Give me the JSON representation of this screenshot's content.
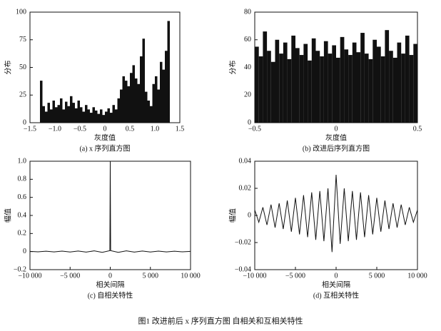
{
  "chart_data": [
    {
      "type": "histogram",
      "caption": "(a) x 序列直方图",
      "xlabel": "灰度值",
      "ylabel": "分布",
      "color": "#111111",
      "bins": [
        -1.3,
        -1.25,
        -1.2,
        -1.15,
        -1.1,
        -1.05,
        -1.0,
        -0.95,
        -0.9,
        -0.85,
        -0.8,
        -0.75,
        -0.7,
        -0.65,
        -0.6,
        -0.55,
        -0.5,
        -0.45,
        -0.4,
        -0.35,
        -0.3,
        -0.25,
        -0.2,
        -0.15,
        -0.1,
        -0.05,
        0,
        0.05,
        0.1,
        0.15,
        0.2,
        0.25,
        0.3,
        0.35,
        0.4,
        0.45,
        0.5,
        0.55,
        0.6,
        0.65,
        0.7,
        0.75,
        0.8,
        0.85,
        0.9,
        0.95,
        1.0,
        1.05,
        1.1,
        1.15,
        1.2,
        1.25,
        1.3
      ],
      "values": [
        38,
        15,
        10,
        18,
        12,
        20,
        14,
        16,
        22,
        12,
        19,
        15,
        24,
        18,
        13,
        20,
        14,
        10,
        16,
        12,
        9,
        14,
        11,
        8,
        12,
        7,
        10,
        13,
        9,
        16,
        12,
        22,
        30,
        42,
        38,
        33,
        45,
        52,
        40,
        35,
        60,
        76,
        28,
        20,
        15,
        35,
        42,
        30,
        55,
        48,
        65,
        92
      ],
      "xlim": [
        -1.5,
        1.5
      ],
      "xticks": [
        {
          "value": -1.5,
          "label": "−1.5"
        },
        {
          "value": -1.0,
          "label": "−1.0"
        },
        {
          "value": -0.5,
          "label": "−0.5"
        },
        0,
        0.5,
        {
          "value": 1.0,
          "label": "1.0"
        },
        1.5
      ],
      "ylim": [
        0,
        100
      ],
      "yticks": [
        0,
        25,
        50,
        75,
        100
      ]
    },
    {
      "type": "histogram",
      "caption": "(b) 改进后序列直方图",
      "xlabel": "灰度值",
      "ylabel": "分布",
      "color": "#111111",
      "bins": [
        -0.5,
        -0.475,
        -0.45,
        -0.425,
        -0.4,
        -0.375,
        -0.35,
        -0.325,
        -0.3,
        -0.275,
        -0.25,
        -0.225,
        -0.2,
        -0.175,
        -0.15,
        -0.125,
        -0.1,
        -0.075,
        -0.05,
        -0.025,
        0,
        0.025,
        0.05,
        0.075,
        0.1,
        0.125,
        0.15,
        0.175,
        0.2,
        0.225,
        0.25,
        0.275,
        0.3,
        0.325,
        0.35,
        0.375,
        0.4,
        0.425,
        0.45,
        0.475,
        0.5
      ],
      "values": [
        55,
        48,
        66,
        52,
        44,
        60,
        50,
        58,
        46,
        63,
        54,
        49,
        57,
        45,
        61,
        52,
        48,
        59,
        50,
        56,
        47,
        62,
        53,
        49,
        58,
        51,
        65,
        50,
        46,
        60,
        55,
        48,
        67,
        52,
        47,
        58,
        50,
        63,
        49,
        57
      ],
      "xlim": [
        -0.5,
        0.5
      ],
      "xticks": [
        {
          "value": -0.5,
          "label": "−0.5"
        },
        0,
        0.5
      ],
      "ylim": [
        0,
        80
      ],
      "yticks": [
        0,
        20,
        40,
        60,
        80
      ]
    },
    {
      "type": "line",
      "caption": "(c) 自相关特性",
      "xlabel": "相关间隔",
      "ylabel": "幅值",
      "color": "#111111",
      "x": [
        -10000,
        -9000,
        -8000,
        -7000,
        -6000,
        -5000,
        -4000,
        -3000,
        -2000,
        -1000,
        -50,
        0,
        50,
        1000,
        2000,
        3000,
        4000,
        5000,
        6000,
        7000,
        8000,
        9000,
        10000
      ],
      "values": [
        0.002,
        -0.003,
        0.004,
        -0.004,
        0.005,
        -0.005,
        0.006,
        -0.006,
        0.008,
        -0.008,
        0.01,
        1,
        0.01,
        -0.008,
        0.008,
        -0.006,
        0.006,
        -0.005,
        0.005,
        -0.004,
        0.004,
        -0.003,
        0.002
      ],
      "xlim": [
        -10000,
        10000
      ],
      "xticks": [
        {
          "value": -10000,
          "label": "−10 000"
        },
        {
          "value": -5000,
          "label": "−5 000"
        },
        0,
        {
          "value": 5000,
          "label": "5 000"
        },
        {
          "value": 10000,
          "label": "10 000"
        }
      ],
      "ylim": [
        -0.2,
        1
      ],
      "yticks": [
        {
          "value": -0.2,
          "label": "−0.2"
        },
        0,
        0.2,
        0.4,
        0.6,
        0.8,
        {
          "value": 1.0,
          "label": "1.0"
        }
      ]
    },
    {
      "type": "line",
      "caption": "(d) 互相关特性",
      "xlabel": "相关间隔",
      "ylabel": "幅值",
      "color": "#111111",
      "x": [
        -10000,
        -9500,
        -9000,
        -8500,
        -8000,
        -7500,
        -7000,
        -6500,
        -6000,
        -5500,
        -5000,
        -4500,
        -4000,
        -3500,
        -3000,
        -2500,
        -2000,
        -1500,
        -1000,
        -500,
        0,
        500,
        1000,
        1500,
        2000,
        2500,
        3000,
        3500,
        4000,
        4500,
        5000,
        5500,
        6000,
        6500,
        7000,
        7500,
        8000,
        8500,
        9000,
        9500,
        10000
      ],
      "values": [
        0.004,
        -0.005,
        0.006,
        -0.007,
        0.008,
        -0.009,
        0.009,
        -0.01,
        0.011,
        -0.012,
        0.013,
        -0.014,
        0.015,
        -0.016,
        0.017,
        -0.018,
        0.018,
        -0.019,
        0.02,
        -0.027,
        0.03,
        -0.021,
        0.02,
        -0.019,
        0.018,
        -0.018,
        0.017,
        -0.016,
        0.015,
        -0.014,
        0.013,
        -0.012,
        0.011,
        -0.01,
        0.009,
        -0.009,
        0.008,
        -0.007,
        0.006,
        -0.005,
        0.004
      ],
      "xlim": [
        -10000,
        10000
      ],
      "xticks": [
        {
          "value": -10000,
          "label": "−10 000"
        },
        {
          "value": -5000,
          "label": "−5 000"
        },
        0,
        {
          "value": 5000,
          "label": "5 000"
        },
        {
          "value": 10000,
          "label": "10 000"
        }
      ],
      "ylim": [
        -0.04,
        0.04
      ],
      "yticks": [
        {
          "value": -0.04,
          "label": "−0.04"
        },
        {
          "value": -0.02,
          "label": "−0.02"
        },
        0,
        0.02,
        0.04
      ]
    }
  ],
  "figure_caption": "图1   改进前后 x 序列直方图 自相关和互相关特性"
}
